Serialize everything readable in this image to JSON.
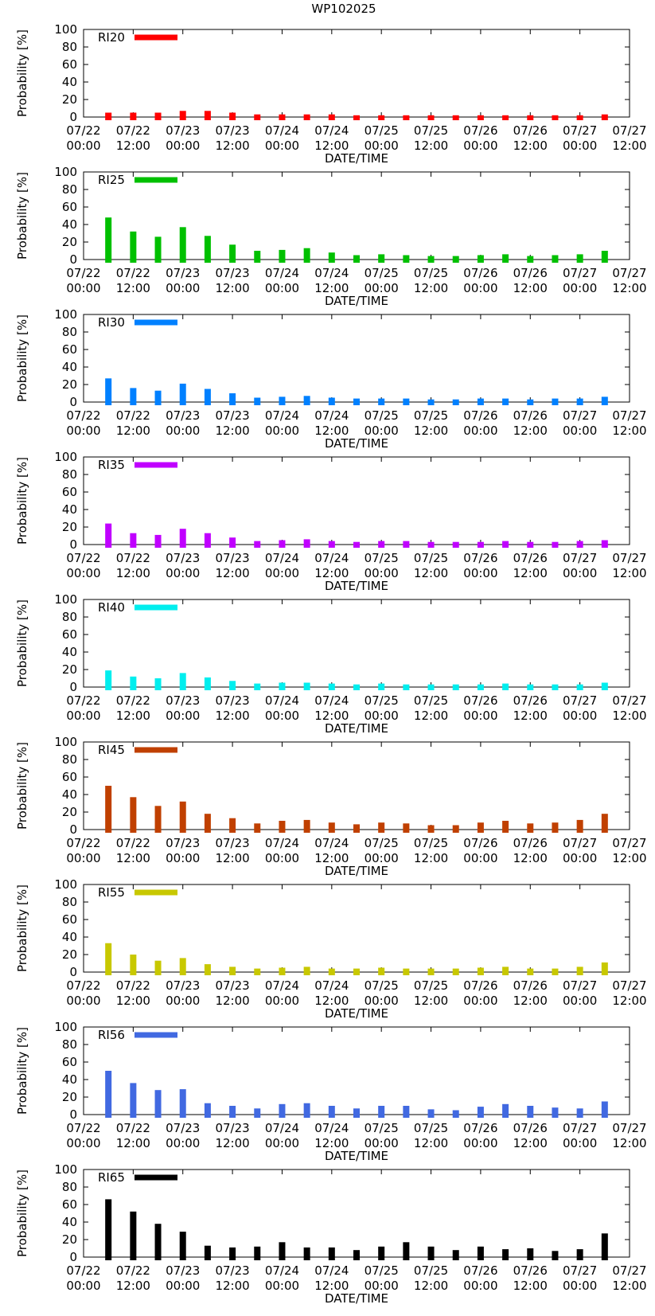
{
  "title": "WP102025",
  "panel_colors": [
    "#ff0000",
    "#00c000",
    "#0080ff",
    "#c000ff",
    "#00eeee",
    "#c04000",
    "#c8c800",
    "#4169e1",
    "#000000"
  ],
  "chart_data": [
    {
      "type": "bar",
      "legend": "RI20",
      "xlabel": "DATE/TIME",
      "ylabel": "Probability [%]",
      "ylim": [
        0,
        100
      ],
      "yticks": [
        0,
        20,
        40,
        60,
        80,
        100
      ],
      "x_ticks": [
        [
          "07/22",
          "00:00"
        ],
        [
          "07/22",
          "12:00"
        ],
        [
          "07/23",
          "00:00"
        ],
        [
          "07/23",
          "12:00"
        ],
        [
          "07/24",
          "00:00"
        ],
        [
          "07/24",
          "12:00"
        ],
        [
          "07/25",
          "00:00"
        ],
        [
          "07/25",
          "12:00"
        ],
        [
          "07/26",
          "00:00"
        ],
        [
          "07/26",
          "12:00"
        ],
        [
          "07/27",
          "00:00"
        ],
        [
          "07/27",
          "12:00"
        ]
      ],
      "x_hours": [
        6,
        12,
        18,
        24,
        30,
        36,
        42,
        48,
        54,
        60,
        66,
        72,
        78,
        84,
        90,
        96,
        102,
        108,
        114,
        120,
        126
      ],
      "values": [
        5,
        5,
        5,
        7,
        7,
        5,
        3,
        3,
        3,
        3,
        2,
        2,
        2,
        2,
        2,
        2,
        2,
        2,
        2,
        2,
        3
      ]
    },
    {
      "type": "bar",
      "legend": "RI25",
      "xlabel": "DATE/TIME",
      "ylabel": "Probability [%]",
      "ylim": [
        0,
        100
      ],
      "yticks": [
        0,
        20,
        40,
        60,
        80,
        100
      ],
      "x_ticks": [
        [
          "07/22",
          "00:00"
        ],
        [
          "07/22",
          "12:00"
        ],
        [
          "07/23",
          "00:00"
        ],
        [
          "07/23",
          "12:00"
        ],
        [
          "07/24",
          "00:00"
        ],
        [
          "07/24",
          "12:00"
        ],
        [
          "07/25",
          "00:00"
        ],
        [
          "07/25",
          "12:00"
        ],
        [
          "07/26",
          "00:00"
        ],
        [
          "07/26",
          "12:00"
        ],
        [
          "07/27",
          "00:00"
        ],
        [
          "07/27",
          "12:00"
        ]
      ],
      "x_hours": [
        6,
        12,
        18,
        24,
        30,
        36,
        42,
        48,
        54,
        60,
        66,
        72,
        78,
        84,
        90,
        96,
        102,
        108,
        114,
        120,
        126
      ],
      "values": [
        48,
        32,
        26,
        37,
        27,
        17,
        10,
        11,
        13,
        8,
        5,
        6,
        5,
        4,
        4,
        5,
        6,
        4,
        5,
        6,
        10
      ]
    },
    {
      "type": "bar",
      "legend": "RI30",
      "xlabel": "DATE/TIME",
      "ylabel": "Probability [%]",
      "ylim": [
        0,
        100
      ],
      "yticks": [
        0,
        20,
        40,
        60,
        80,
        100
      ],
      "x_ticks": [
        [
          "07/22",
          "00:00"
        ],
        [
          "07/22",
          "12:00"
        ],
        [
          "07/23",
          "00:00"
        ],
        [
          "07/23",
          "12:00"
        ],
        [
          "07/24",
          "00:00"
        ],
        [
          "07/24",
          "12:00"
        ],
        [
          "07/25",
          "00:00"
        ],
        [
          "07/25",
          "12:00"
        ],
        [
          "07/26",
          "00:00"
        ],
        [
          "07/26",
          "12:00"
        ],
        [
          "07/27",
          "00:00"
        ],
        [
          "07/27",
          "12:00"
        ]
      ],
      "x_hours": [
        6,
        12,
        18,
        24,
        30,
        36,
        42,
        48,
        54,
        60,
        66,
        72,
        78,
        84,
        90,
        96,
        102,
        108,
        114,
        120,
        126
      ],
      "values": [
        27,
        16,
        13,
        21,
        15,
        10,
        5,
        6,
        7,
        5,
        4,
        4,
        4,
        3,
        3,
        4,
        4,
        3,
        4,
        4,
        6
      ]
    },
    {
      "type": "bar",
      "legend": "RI35",
      "xlabel": "DATE/TIME",
      "ylabel": "Probability [%]",
      "ylim": [
        0,
        100
      ],
      "yticks": [
        0,
        20,
        40,
        60,
        80,
        100
      ],
      "x_ticks": [
        [
          "07/22",
          "00:00"
        ],
        [
          "07/22",
          "12:00"
        ],
        [
          "07/23",
          "00:00"
        ],
        [
          "07/23",
          "12:00"
        ],
        [
          "07/24",
          "00:00"
        ],
        [
          "07/24",
          "12:00"
        ],
        [
          "07/25",
          "00:00"
        ],
        [
          "07/25",
          "12:00"
        ],
        [
          "07/26",
          "00:00"
        ],
        [
          "07/26",
          "12:00"
        ],
        [
          "07/27",
          "00:00"
        ],
        [
          "07/27",
          "12:00"
        ]
      ],
      "x_hours": [
        6,
        12,
        18,
        24,
        30,
        36,
        42,
        48,
        54,
        60,
        66,
        72,
        78,
        84,
        90,
        96,
        102,
        108,
        114,
        120,
        126
      ],
      "values": [
        24,
        13,
        11,
        18,
        13,
        8,
        4,
        5,
        6,
        4,
        3,
        4,
        4,
        3,
        3,
        3,
        4,
        3,
        3,
        4,
        5
      ]
    },
    {
      "type": "bar",
      "legend": "RI40",
      "xlabel": "DATE/TIME",
      "ylabel": "Probability [%]",
      "ylim": [
        0,
        100
      ],
      "yticks": [
        0,
        20,
        40,
        60,
        80,
        100
      ],
      "x_ticks": [
        [
          "07/22",
          "00:00"
        ],
        [
          "07/22",
          "12:00"
        ],
        [
          "07/23",
          "00:00"
        ],
        [
          "07/23",
          "12:00"
        ],
        [
          "07/24",
          "00:00"
        ],
        [
          "07/24",
          "12:00"
        ],
        [
          "07/25",
          "00:00"
        ],
        [
          "07/25",
          "12:00"
        ],
        [
          "07/26",
          "00:00"
        ],
        [
          "07/26",
          "12:00"
        ],
        [
          "07/27",
          "00:00"
        ],
        [
          "07/27",
          "12:00"
        ]
      ],
      "x_hours": [
        6,
        12,
        18,
        24,
        30,
        36,
        42,
        48,
        54,
        60,
        66,
        72,
        78,
        84,
        90,
        96,
        102,
        108,
        114,
        120,
        126
      ],
      "values": [
        19,
        12,
        10,
        16,
        11,
        7,
        4,
        5,
        5,
        4,
        3,
        4,
        3,
        3,
        3,
        3,
        4,
        3,
        3,
        3,
        5
      ]
    },
    {
      "type": "bar",
      "legend": "RI45",
      "xlabel": "DATE/TIME",
      "ylabel": "Probability [%]",
      "ylim": [
        0,
        100
      ],
      "yticks": [
        0,
        20,
        40,
        60,
        80,
        100
      ],
      "x_ticks": [
        [
          "07/22",
          "00:00"
        ],
        [
          "07/22",
          "12:00"
        ],
        [
          "07/23",
          "00:00"
        ],
        [
          "07/23",
          "12:00"
        ],
        [
          "07/24",
          "00:00"
        ],
        [
          "07/24",
          "12:00"
        ],
        [
          "07/25",
          "00:00"
        ],
        [
          "07/25",
          "12:00"
        ],
        [
          "07/26",
          "00:00"
        ],
        [
          "07/26",
          "12:00"
        ],
        [
          "07/27",
          "00:00"
        ],
        [
          "07/27",
          "12:00"
        ]
      ],
      "x_hours": [
        6,
        12,
        18,
        24,
        30,
        36,
        42,
        48,
        54,
        60,
        66,
        72,
        78,
        84,
        90,
        96,
        102,
        108,
        114,
        120,
        126
      ],
      "values": [
        50,
        37,
        27,
        32,
        18,
        13,
        7,
        10,
        11,
        8,
        6,
        8,
        7,
        5,
        5,
        8,
        10,
        7,
        8,
        11,
        18
      ]
    },
    {
      "type": "bar",
      "legend": "RI55",
      "xlabel": "DATE/TIME",
      "ylabel": "Probability [%]",
      "ylim": [
        0,
        100
      ],
      "yticks": [
        0,
        20,
        40,
        60,
        80,
        100
      ],
      "x_ticks": [
        [
          "07/22",
          "00:00"
        ],
        [
          "07/22",
          "12:00"
        ],
        [
          "07/23",
          "00:00"
        ],
        [
          "07/23",
          "12:00"
        ],
        [
          "07/24",
          "00:00"
        ],
        [
          "07/24",
          "12:00"
        ],
        [
          "07/25",
          "00:00"
        ],
        [
          "07/25",
          "12:00"
        ],
        [
          "07/26",
          "00:00"
        ],
        [
          "07/26",
          "12:00"
        ],
        [
          "07/27",
          "00:00"
        ],
        [
          "07/27",
          "12:00"
        ]
      ],
      "x_hours": [
        6,
        12,
        18,
        24,
        30,
        36,
        42,
        48,
        54,
        60,
        66,
        72,
        78,
        84,
        90,
        96,
        102,
        108,
        114,
        120,
        126
      ],
      "values": [
        33,
        20,
        13,
        16,
        9,
        6,
        4,
        5,
        6,
        4,
        4,
        5,
        4,
        4,
        4,
        5,
        6,
        4,
        4,
        6,
        11
      ]
    },
    {
      "type": "bar",
      "legend": "RI56",
      "xlabel": "DATE/TIME",
      "ylabel": "Probability [%]",
      "ylim": [
        0,
        100
      ],
      "yticks": [
        0,
        20,
        40,
        60,
        80,
        100
      ],
      "x_ticks": [
        [
          "07/22",
          "00:00"
        ],
        [
          "07/22",
          "12:00"
        ],
        [
          "07/23",
          "00:00"
        ],
        [
          "07/23",
          "12:00"
        ],
        [
          "07/24",
          "00:00"
        ],
        [
          "07/24",
          "12:00"
        ],
        [
          "07/25",
          "00:00"
        ],
        [
          "07/25",
          "12:00"
        ],
        [
          "07/26",
          "00:00"
        ],
        [
          "07/26",
          "12:00"
        ],
        [
          "07/27",
          "00:00"
        ],
        [
          "07/27",
          "12:00"
        ]
      ],
      "x_hours": [
        6,
        12,
        18,
        24,
        30,
        36,
        42,
        48,
        54,
        60,
        66,
        72,
        78,
        84,
        90,
        96,
        102,
        108,
        114,
        120,
        126
      ],
      "values": [
        50,
        36,
        28,
        29,
        13,
        10,
        7,
        12,
        13,
        10,
        7,
        10,
        10,
        6,
        5,
        9,
        12,
        10,
        8,
        7,
        15
      ]
    },
    {
      "type": "bar",
      "legend": "RI65",
      "xlabel": "DATE/TIME",
      "ylabel": "Probability [%]",
      "ylim": [
        0,
        100
      ],
      "yticks": [
        0,
        20,
        40,
        60,
        80,
        100
      ],
      "x_ticks": [
        [
          "07/22",
          "00:00"
        ],
        [
          "07/22",
          "12:00"
        ],
        [
          "07/23",
          "00:00"
        ],
        [
          "07/23",
          "12:00"
        ],
        [
          "07/24",
          "00:00"
        ],
        [
          "07/24",
          "12:00"
        ],
        [
          "07/25",
          "00:00"
        ],
        [
          "07/25",
          "12:00"
        ],
        [
          "07/26",
          "00:00"
        ],
        [
          "07/26",
          "12:00"
        ],
        [
          "07/27",
          "00:00"
        ],
        [
          "07/27",
          "12:00"
        ]
      ],
      "x_hours": [
        6,
        12,
        18,
        24,
        30,
        36,
        42,
        48,
        54,
        60,
        66,
        72,
        78,
        84,
        90,
        96,
        102,
        108,
        114,
        120,
        126
      ],
      "values": [
        66,
        52,
        38,
        29,
        13,
        11,
        12,
        17,
        11,
        11,
        8,
        12,
        17,
        12,
        8,
        12,
        9,
        10,
        7,
        9,
        27
      ]
    }
  ]
}
